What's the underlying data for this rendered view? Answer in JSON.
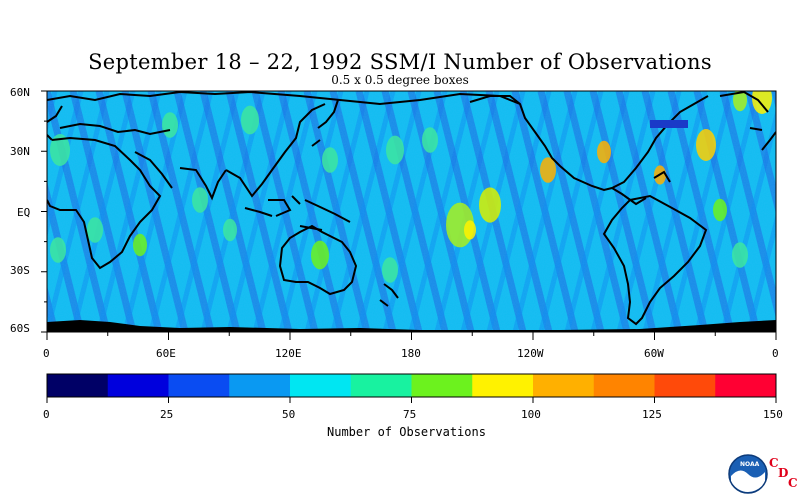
{
  "title": "September 18 – 22, 1992 SSM/I Number of Observations",
  "subtitle": "0.5 x 0.5 degree boxes",
  "map": {
    "lat_labels": [
      "60N",
      "30N",
      "EQ",
      "30S",
      "60S"
    ],
    "lon_labels": [
      "0",
      "60E",
      "120E",
      "180",
      "120W",
      "60W",
      "0"
    ]
  },
  "colorbar": {
    "ticks": [
      "0",
      "25",
      "50",
      "75",
      "100",
      "125",
      "150"
    ],
    "label": "Number of Observations",
    "colors": [
      "#000066",
      "#0000dd",
      "#0a4cf2",
      "#0a99f2",
      "#00e6f2",
      "#18f2a0",
      "#6cf21e",
      "#fff200",
      "#ffb000",
      "#ff8400",
      "#ff4a0a",
      "#ff0033"
    ]
  },
  "logo": {
    "text": "NOAA",
    "c1": "C",
    "c2": "D",
    "c3": "C"
  }
}
